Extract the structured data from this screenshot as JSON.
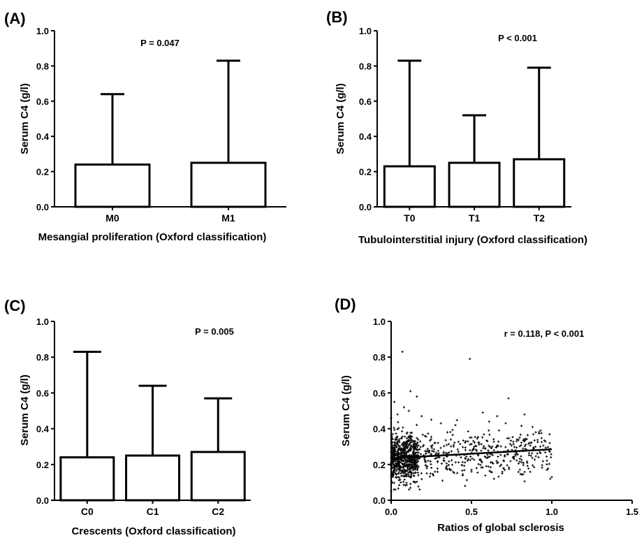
{
  "chart_data": [
    {
      "panel": "(A)",
      "type": "bar",
      "error_bars": "one-sided upper (max)",
      "categories": [
        "M0",
        "M1"
      ],
      "values": [
        0.24,
        0.25
      ],
      "whisker_max": [
        0.64,
        0.83
      ],
      "xlabel": "Mesangial proliferation (Oxford classification)",
      "ylabel": "Serum C4 (g/l)",
      "annotation": "P = 0.047",
      "ylim": [
        0,
        1.0
      ],
      "yticks": [
        "0.0",
        "0.2",
        "0.4",
        "0.6",
        "0.8",
        "1.0"
      ],
      "grid": false,
      "color": "#000000"
    },
    {
      "panel": "(B)",
      "type": "bar",
      "error_bars": "one-sided upper (max)",
      "categories": [
        "T0",
        "T1",
        "T2"
      ],
      "values": [
        0.23,
        0.25,
        0.27
      ],
      "whisker_max": [
        0.83,
        0.52,
        0.79
      ],
      "xlabel": "Tubulointerstitial injury (Oxford classification)",
      "ylabel": "Serum C4 (g/l)",
      "annotation": "P < 0.001",
      "ylim": [
        0,
        1.0
      ],
      "yticks": [
        "0.0",
        "0.2",
        "0.4",
        "0.6",
        "0.8",
        "1.0"
      ],
      "grid": false,
      "color": "#000000"
    },
    {
      "panel": "(C)",
      "type": "bar",
      "error_bars": "one-sided upper (max)",
      "categories": [
        "C0",
        "C1",
        "C2"
      ],
      "values": [
        0.24,
        0.25,
        0.27
      ],
      "whisker_max": [
        0.83,
        0.64,
        0.57
      ],
      "xlabel": "Crescents (Oxford classification)",
      "ylabel": "Serum C4 (g/l)",
      "annotation": "P = 0.005",
      "ylim": [
        0,
        1.0
      ],
      "yticks": [
        "0.0",
        "0.2",
        "0.4",
        "0.6",
        "0.8",
        "1.0"
      ],
      "grid": false,
      "color": "#000000"
    },
    {
      "panel": "(D)",
      "type": "scatter",
      "xlabel": "Ratios of global sclerosis",
      "ylabel": "Serum C4 (g/l)",
      "annotation": "r = 0.118, P < 0.001",
      "xlim": [
        0,
        1.5
      ],
      "ylim": [
        0,
        1.0
      ],
      "xticks": [
        "0.0",
        "0.5",
        "1.0",
        "1.5"
      ],
      "yticks": [
        "0.0",
        "0.2",
        "0.4",
        "0.6",
        "0.8",
        "1.0"
      ],
      "regression_line": {
        "x": [
          0.0,
          1.0
        ],
        "y": [
          0.235,
          0.285
        ]
      },
      "points": [
        [
          0.07,
          0.83
        ],
        [
          0.49,
          0.79
        ],
        [
          0.73,
          0.57
        ],
        [
          0.83,
          0.48
        ],
        [
          0.66,
          0.47
        ],
        [
          0.0,
          0.46
        ],
        [
          0.57,
          0.49
        ],
        [
          0.12,
          0.61
        ],
        [
          0.16,
          0.58
        ],
        [
          0.4,
          0.42
        ],
        [
          0.02,
          0.55
        ],
        [
          0.08,
          0.52
        ],
        [
          0.11,
          0.5
        ],
        [
          0.04,
          0.48
        ],
        [
          0.19,
          0.47
        ],
        [
          0.25,
          0.45
        ],
        [
          0.31,
          0.43
        ],
        [
          0.61,
          0.44
        ],
        [
          0.88,
          0.41
        ],
        [
          0.93,
          0.39
        ],
        [
          0.0,
          0.05
        ],
        [
          0.12,
          0.07
        ],
        [
          0.06,
          0.1
        ],
        [
          0.15,
          0.1
        ],
        [
          0.32,
          0.11
        ],
        [
          0.46,
          0.08
        ],
        [
          0.64,
          0.12
        ],
        [
          1.0,
          0.13
        ],
        [
          0.03,
          0.13
        ],
        [
          0.09,
          0.14
        ],
        [
          0.5,
          0.16
        ],
        [
          0.7,
          0.18
        ],
        [
          0.97,
          0.17
        ],
        [
          0.8,
          0.35
        ],
        [
          0.35,
          0.38
        ],
        [
          0.21,
          0.36
        ],
        [
          0.01,
          0.37
        ],
        [
          0.05,
          0.34
        ],
        [
          0.14,
          0.33
        ],
        [
          0.27,
          0.32
        ]
      ],
      "cloud": {
        "note": "about 1000 patients; cloud densest near x 0.0-0.15, y 0.15-0.30",
        "count": 1000,
        "x_range": [
          0.0,
          1.0
        ],
        "y_center": [
          0.235,
          0.285
        ],
        "y_spread": 0.065
      },
      "grid": false,
      "color": "#000000"
    }
  ]
}
